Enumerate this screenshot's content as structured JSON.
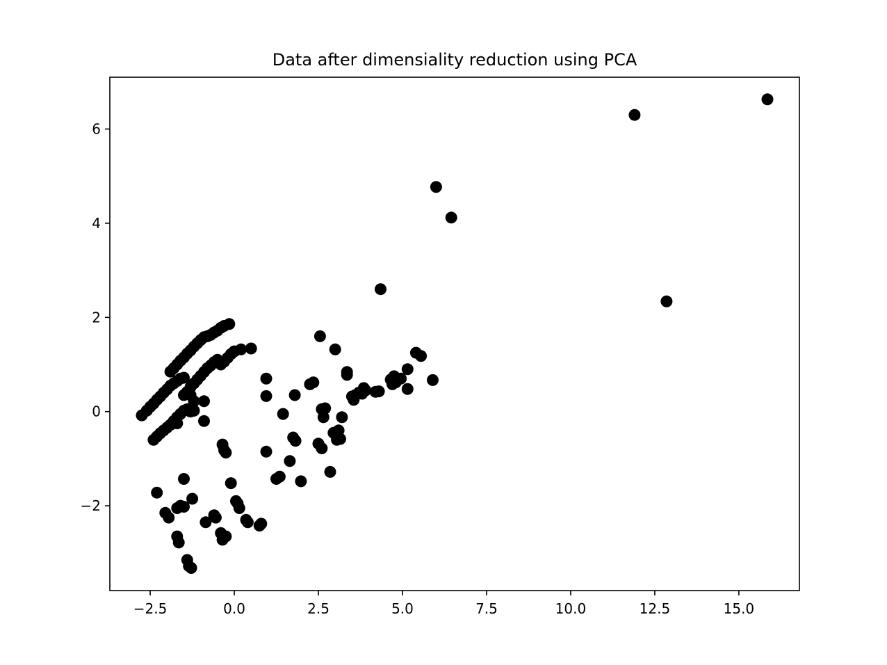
{
  "chart_data": {
    "type": "scatter",
    "title": "Data after dimensiality reduction using PCA",
    "xlabel": "",
    "ylabel": "",
    "xlim": [
      -3.7,
      16.8
    ],
    "ylim": [
      -3.8,
      7.1
    ],
    "xticks": [
      -2.5,
      0.0,
      2.5,
      5.0,
      7.5,
      10.0,
      12.5,
      15.0
    ],
    "xtick_labels": [
      "−2.5",
      "0.0",
      "2.5",
      "5.0",
      "7.5",
      "10.0",
      "12.5",
      "15.0"
    ],
    "yticks": [
      -2,
      0,
      2,
      4,
      6
    ],
    "ytick_labels": [
      "−2",
      "0",
      "2",
      "4",
      "6"
    ],
    "grid": false,
    "marker_color": "#000000",
    "series": [
      {
        "points": [
          [
            -2.75,
            -0.08
          ],
          [
            -2.6,
            0.02
          ],
          [
            -2.5,
            0.1
          ],
          [
            -2.4,
            0.17
          ],
          [
            -2.3,
            0.25
          ],
          [
            -2.2,
            0.32
          ],
          [
            -2.1,
            0.4
          ],
          [
            -2.0,
            0.47
          ],
          [
            -1.9,
            0.55
          ],
          [
            -1.8,
            0.6
          ],
          [
            -1.7,
            0.65
          ],
          [
            -1.6,
            0.7
          ],
          [
            -1.5,
            0.72
          ],
          [
            -1.9,
            0.85
          ],
          [
            -1.8,
            0.92
          ],
          [
            -1.7,
            1.0
          ],
          [
            -1.6,
            1.08
          ],
          [
            -1.5,
            1.15
          ],
          [
            -1.4,
            1.23
          ],
          [
            -1.3,
            1.3
          ],
          [
            -1.2,
            1.38
          ],
          [
            -1.1,
            1.45
          ],
          [
            -1.0,
            1.52
          ],
          [
            -0.9,
            1.58
          ],
          [
            -0.8,
            1.6
          ],
          [
            -0.7,
            1.63
          ],
          [
            -0.6,
            1.68
          ],
          [
            -0.5,
            1.72
          ],
          [
            -0.4,
            1.78
          ],
          [
            -0.3,
            1.82
          ],
          [
            -0.15,
            1.86
          ],
          [
            -1.3,
            0.52
          ],
          [
            -1.2,
            0.6
          ],
          [
            -1.1,
            0.68
          ],
          [
            -1.0,
            0.76
          ],
          [
            -0.9,
            0.84
          ],
          [
            -0.8,
            0.92
          ],
          [
            -0.7,
            0.98
          ],
          [
            -0.6,
            1.05
          ],
          [
            -0.5,
            1.1
          ],
          [
            -0.4,
            1.0
          ],
          [
            -0.3,
            1.06
          ],
          [
            -0.2,
            1.14
          ],
          [
            -0.1,
            1.22
          ],
          [
            0.0,
            1.28
          ],
          [
            0.2,
            1.32
          ],
          [
            0.5,
            1.34
          ],
          [
            -1.5,
            0.35
          ],
          [
            -1.4,
            0.42
          ],
          [
            -1.3,
            0.35
          ],
          [
            -1.2,
            0.22
          ],
          [
            -0.9,
            0.22
          ],
          [
            -2.4,
            -0.6
          ],
          [
            -2.3,
            -0.53
          ],
          [
            -2.2,
            -0.46
          ],
          [
            -2.1,
            -0.4
          ],
          [
            -2.0,
            -0.34
          ],
          [
            -1.9,
            -0.28
          ],
          [
            -1.8,
            -0.2
          ],
          [
            -1.7,
            -0.12
          ],
          [
            -1.6,
            -0.05
          ],
          [
            -1.5,
            0.02
          ],
          [
            -1.4,
            0.05
          ],
          [
            -1.3,
            0.0
          ],
          [
            -1.2,
            0.02
          ],
          [
            -1.7,
            -0.25
          ],
          [
            -0.9,
            -0.2
          ],
          [
            -0.35,
            -0.7
          ],
          [
            -0.3,
            -0.82
          ],
          [
            -0.25,
            -0.87
          ],
          [
            -0.1,
            -1.52
          ],
          [
            -2.3,
            -1.72
          ],
          [
            -2.05,
            -2.15
          ],
          [
            -1.95,
            -2.25
          ],
          [
            -1.7,
            -2.65
          ],
          [
            -1.65,
            -2.78
          ],
          [
            -1.7,
            -2.05
          ],
          [
            -1.6,
            -2.0
          ],
          [
            -1.5,
            -1.43
          ],
          [
            -1.5,
            -2.02
          ],
          [
            -1.25,
            -1.85
          ],
          [
            -1.4,
            -3.15
          ],
          [
            -1.35,
            -3.28
          ],
          [
            -1.28,
            -3.32
          ],
          [
            -0.85,
            -2.35
          ],
          [
            -0.6,
            -2.2
          ],
          [
            -0.55,
            -2.25
          ],
          [
            -0.4,
            -2.58
          ],
          [
            -0.35,
            -2.72
          ],
          [
            -0.25,
            -2.65
          ],
          [
            0.05,
            -1.9
          ],
          [
            0.1,
            -1.95
          ],
          [
            0.15,
            -2.05
          ],
          [
            0.35,
            -2.3
          ],
          [
            0.4,
            -2.35
          ],
          [
            0.75,
            -2.42
          ],
          [
            0.8,
            -2.38
          ],
          [
            0.95,
            0.7
          ],
          [
            0.95,
            0.33
          ],
          [
            0.95,
            -0.85
          ],
          [
            1.25,
            -1.43
          ],
          [
            1.35,
            -1.38
          ],
          [
            1.45,
            -0.05
          ],
          [
            1.65,
            -1.05
          ],
          [
            1.75,
            -0.55
          ],
          [
            1.8,
            0.35
          ],
          [
            1.82,
            -0.62
          ],
          [
            1.98,
            -1.48
          ],
          [
            2.25,
            0.58
          ],
          [
            2.35,
            0.62
          ],
          [
            2.5,
            -0.68
          ],
          [
            2.55,
            1.6
          ],
          [
            2.6,
            0.05
          ],
          [
            2.6,
            -0.78
          ],
          [
            2.65,
            -0.12
          ],
          [
            2.7,
            0.07
          ],
          [
            2.85,
            -1.28
          ],
          [
            2.95,
            -0.45
          ],
          [
            3.0,
            1.32
          ],
          [
            3.05,
            -0.6
          ],
          [
            3.1,
            -0.4
          ],
          [
            3.15,
            -0.58
          ],
          [
            3.2,
            -0.12
          ],
          [
            3.35,
            0.78
          ],
          [
            3.35,
            0.84
          ],
          [
            3.5,
            0.32
          ],
          [
            3.55,
            0.25
          ],
          [
            3.6,
            0.35
          ],
          [
            3.7,
            0.4
          ],
          [
            3.8,
            0.38
          ],
          [
            3.85,
            0.5
          ],
          [
            3.9,
            0.45
          ],
          [
            4.2,
            0.42
          ],
          [
            4.3,
            0.43
          ],
          [
            4.35,
            2.6
          ],
          [
            4.65,
            0.68
          ],
          [
            4.7,
            0.58
          ],
          [
            4.75,
            0.75
          ],
          [
            4.8,
            0.62
          ],
          [
            4.95,
            0.7
          ],
          [
            5.15,
            0.9
          ],
          [
            5.15,
            0.48
          ],
          [
            5.4,
            1.25
          ],
          [
            5.55,
            1.18
          ],
          [
            5.9,
            0.67
          ],
          [
            6.0,
            4.77
          ],
          [
            6.45,
            4.12
          ],
          [
            11.9,
            6.3
          ],
          [
            12.85,
            2.34
          ],
          [
            15.85,
            6.63
          ]
        ]
      }
    ]
  }
}
